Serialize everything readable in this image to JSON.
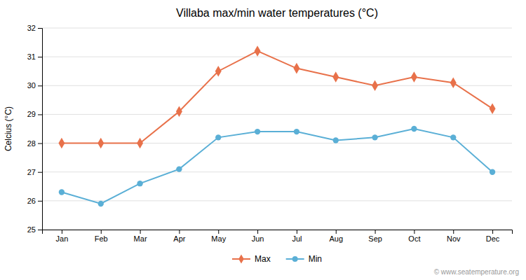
{
  "chart_data": {
    "type": "line",
    "title": "Villaba max/min water temperatures (°C)",
    "y_label": "Celcius (°C)",
    "categories": [
      "Jan",
      "Feb",
      "Mar",
      "Apr",
      "May",
      "Jun",
      "Jul",
      "Aug",
      "Sep",
      "Oct",
      "Nov",
      "Dec"
    ],
    "series": [
      {
        "name": "Max",
        "color": "#e8714a",
        "marker": "diamond",
        "values": [
          28.0,
          28.0,
          28.0,
          29.1,
          30.5,
          31.2,
          30.6,
          30.3,
          30.0,
          30.3,
          30.1,
          29.2
        ]
      },
      {
        "name": "Min",
        "color": "#5aafd6",
        "marker": "circle",
        "values": [
          26.3,
          25.9,
          26.6,
          27.1,
          28.2,
          28.4,
          28.4,
          28.1,
          28.2,
          28.5,
          28.2,
          27.0
        ]
      }
    ],
    "ylim": [
      25,
      32
    ],
    "yticks": [
      25,
      26,
      27,
      28,
      29,
      30,
      31,
      32
    ],
    "grid": true,
    "legend": "bottom",
    "annotations": [
      "© www.seatemperature.org"
    ]
  }
}
